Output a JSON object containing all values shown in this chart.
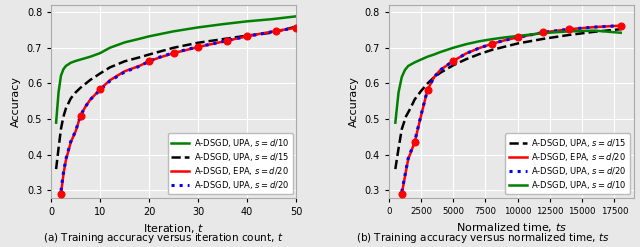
{
  "left": {
    "xlabel": "Iteration, $t$",
    "ylabel": "Accuracy",
    "xlim": [
      0,
      50
    ],
    "ylim": [
      0.28,
      0.82
    ],
    "yticks": [
      0.3,
      0.4,
      0.5,
      0.6,
      0.7,
      0.8
    ],
    "xticks": [
      0,
      10,
      20,
      30,
      40,
      50
    ],
    "caption": "(a) Training accuracy versus iteration count, $t$",
    "series": [
      {
        "label": "A-DSGD, UPA, $s = d/10$",
        "color": "#008000",
        "linestyle": "-",
        "linewidth": 1.8,
        "marker": null,
        "marker_x": [],
        "x": [
          1,
          1.5,
          2,
          2.5,
          3,
          4,
          5,
          6,
          7,
          8,
          9,
          10,
          12,
          15,
          18,
          20,
          25,
          30,
          35,
          40,
          45,
          50
        ],
        "y": [
          0.49,
          0.575,
          0.622,
          0.64,
          0.649,
          0.658,
          0.663,
          0.667,
          0.671,
          0.675,
          0.68,
          0.685,
          0.7,
          0.715,
          0.725,
          0.732,
          0.746,
          0.757,
          0.766,
          0.774,
          0.78,
          0.788
        ]
      },
      {
        "label": "A-DSGD, UPA, $s = d/15$",
        "color": "#000000",
        "linestyle": "--",
        "linewidth": 1.8,
        "marker": null,
        "marker_x": [],
        "x": [
          1,
          1.5,
          2,
          2.5,
          3,
          4,
          5,
          6,
          7,
          8,
          9,
          10,
          12,
          15,
          18,
          20,
          25,
          30,
          35,
          40,
          45,
          50
        ],
        "y": [
          0.36,
          0.418,
          0.473,
          0.507,
          0.53,
          0.558,
          0.575,
          0.588,
          0.599,
          0.61,
          0.619,
          0.628,
          0.645,
          0.662,
          0.673,
          0.681,
          0.7,
          0.714,
          0.724,
          0.734,
          0.742,
          0.759
        ]
      },
      {
        "label": "A-DSGD, EPA, $s = d/20$",
        "color": "#ff0000",
        "linestyle": "-",
        "linewidth": 1.8,
        "marker": "o",
        "markersize": 5,
        "markerfacecolor": "#ff0000",
        "marker_x": [
          2,
          6,
          10,
          20,
          25,
          30,
          35,
          40,
          45,
          50
        ],
        "x": [
          2,
          2.5,
          3,
          4,
          5,
          6,
          7,
          8,
          9,
          10,
          12,
          15,
          18,
          20,
          22,
          25,
          28,
          30,
          33,
          36,
          40,
          43,
          46,
          50
        ],
        "y": [
          0.291,
          0.345,
          0.385,
          0.435,
          0.466,
          0.51,
          0.535,
          0.555,
          0.569,
          0.584,
          0.609,
          0.634,
          0.649,
          0.662,
          0.672,
          0.685,
          0.695,
          0.702,
          0.711,
          0.72,
          0.732,
          0.74,
          0.747,
          0.756
        ]
      },
      {
        "label": "A-DSGD, UPA, $s = d/20$",
        "color": "#0000ff",
        "linestyle": ":",
        "linewidth": 2.2,
        "marker": null,
        "marker_x": [],
        "x": [
          2,
          2.5,
          3,
          4,
          5,
          6,
          7,
          8,
          9,
          10,
          12,
          15,
          18,
          20,
          22,
          25,
          28,
          30,
          33,
          36,
          40,
          43,
          46,
          50
        ],
        "y": [
          0.299,
          0.35,
          0.388,
          0.437,
          0.467,
          0.511,
          0.535,
          0.555,
          0.568,
          0.582,
          0.607,
          0.632,
          0.648,
          0.662,
          0.673,
          0.686,
          0.696,
          0.703,
          0.711,
          0.72,
          0.732,
          0.739,
          0.747,
          0.756
        ]
      }
    ]
  },
  "right": {
    "xlabel": "Normalized time, $ts$",
    "ylabel": "Accuracy",
    "xlim": [
      0,
      19000
    ],
    "ylim": [
      0.28,
      0.82
    ],
    "yticks": [
      0.3,
      0.4,
      0.5,
      0.6,
      0.7,
      0.8
    ],
    "xticks": [
      0,
      2500,
      5000,
      7500,
      10000,
      12500,
      15000,
      17500
    ],
    "caption": "(b) Training accuracy versus normalized time, $ts$",
    "series": [
      {
        "label": "A-DSGD, UPA, $s = d/15$",
        "color": "#000000",
        "linestyle": "--",
        "linewidth": 1.8,
        "marker": null,
        "marker_x": [],
        "x": [
          500,
          750,
          1000,
          1333,
          1667,
          2000,
          2500,
          3000,
          3500,
          4000,
          5000,
          6000,
          7000,
          8000,
          9000,
          10000,
          12000,
          14000,
          16000,
          18000
        ],
        "y": [
          0.36,
          0.418,
          0.472,
          0.508,
          0.53,
          0.555,
          0.579,
          0.6,
          0.617,
          0.63,
          0.651,
          0.668,
          0.682,
          0.694,
          0.703,
          0.712,
          0.725,
          0.736,
          0.745,
          0.752
        ]
      },
      {
        "label": "A-DSGD, EPA, $s = d/20$",
        "color": "#ff0000",
        "linestyle": "-",
        "linewidth": 1.8,
        "marker": "o",
        "markersize": 5,
        "markerfacecolor": "#ff0000",
        "marker_x": [
          1000,
          2000,
          3000,
          5000,
          8000,
          10000,
          12500,
          15000,
          17500
        ],
        "x": [
          1000,
          1500,
          2000,
          2500,
          3000,
          3500,
          4000,
          5000,
          6000,
          7000,
          8000,
          9000,
          10000,
          12000,
          14000,
          16000,
          18000
        ],
        "y": [
          0.291,
          0.388,
          0.435,
          0.51,
          0.582,
          0.617,
          0.638,
          0.663,
          0.684,
          0.699,
          0.711,
          0.721,
          0.729,
          0.743,
          0.752,
          0.758,
          0.762
        ]
      },
      {
        "label": "A-DSGD, UPA, $s = d/20$",
        "color": "#0000ff",
        "linestyle": ":",
        "linewidth": 2.2,
        "marker": null,
        "marker_x": [],
        "x": [
          1000,
          1500,
          2000,
          2500,
          3000,
          3500,
          4000,
          5000,
          6000,
          7000,
          8000,
          9000,
          10000,
          12000,
          14000,
          16000,
          18000
        ],
        "y": [
          0.296,
          0.39,
          0.437,
          0.512,
          0.583,
          0.617,
          0.638,
          0.663,
          0.684,
          0.699,
          0.711,
          0.721,
          0.729,
          0.743,
          0.752,
          0.758,
          0.762
        ]
      },
      {
        "label": "A-DSGD, UPA, $s = d/10$",
        "color": "#008000",
        "linestyle": "-",
        "linewidth": 1.8,
        "marker": null,
        "marker_x": [],
        "x": [
          500,
          750,
          1000,
          1250,
          1500,
          2000,
          2500,
          3000,
          3500,
          4000,
          5000,
          6000,
          7000,
          8000,
          9000,
          10000,
          12000,
          14000,
          16000,
          18000
        ],
        "y": [
          0.49,
          0.575,
          0.618,
          0.638,
          0.649,
          0.659,
          0.667,
          0.675,
          0.681,
          0.688,
          0.7,
          0.71,
          0.718,
          0.724,
          0.729,
          0.733,
          0.741,
          0.746,
          0.748,
          0.742
        ]
      }
    ]
  },
  "bg_color": "#e8e8e8",
  "axes_bg_color": "#e8e8e8",
  "grid_color": "#ffffff",
  "fig_facecolor": "#e8e8e8"
}
